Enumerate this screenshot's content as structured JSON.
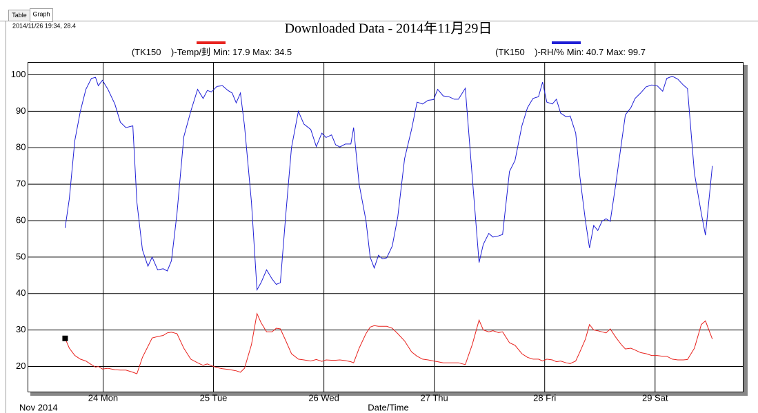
{
  "tabs": [
    "Table",
    "Graph"
  ],
  "cursor_readout": "2014/11/26 19:34, 28.4",
  "chart_data": {
    "type": "line",
    "title": "Downloaded Data - 2014年11月29日",
    "x_label": "Date/Time",
    "x_sublabel": "Nov 2014",
    "grid": true,
    "xlim": [
      23.319,
      29.798
    ],
    "ylim": [
      13,
      103.4
    ],
    "xticks": [
      {
        "value": 24,
        "label": "24 Mon"
      },
      {
        "value": 25,
        "label": "25 Tue"
      },
      {
        "value": 26,
        "label": "26 Wed"
      },
      {
        "value": 27,
        "label": "27 Thu"
      },
      {
        "value": 28,
        "label": "28 Fri"
      },
      {
        "value": 29,
        "label": "29 Sat"
      }
    ],
    "yticks": [
      20,
      30,
      40,
      50,
      60,
      70,
      80,
      90,
      100
    ],
    "x": [
      23.656,
      23.694,
      23.744,
      23.794,
      23.844,
      23.894,
      23.931,
      23.956,
      23.994,
      24.044,
      24.106,
      24.156,
      24.206,
      24.269,
      24.306,
      24.356,
      24.406,
      24.444,
      24.494,
      24.544,
      24.581,
      24.619,
      24.669,
      24.731,
      24.794,
      24.856,
      24.906,
      24.944,
      24.981,
      25.031,
      25.081,
      25.131,
      25.169,
      25.206,
      25.244,
      25.281,
      25.344,
      25.394,
      25.431,
      25.481,
      25.531,
      25.569,
      25.606,
      25.656,
      25.706,
      25.769,
      25.819,
      25.881,
      25.931,
      25.981,
      26.019,
      26.069,
      26.106,
      26.144,
      26.194,
      26.244,
      26.269,
      26.319,
      26.381,
      26.419,
      26.456,
      26.494,
      26.531,
      26.569,
      26.619,
      26.669,
      26.731,
      26.794,
      26.844,
      26.894,
      26.944,
      26.994,
      27.031,
      27.081,
      27.131,
      27.181,
      27.219,
      27.281,
      27.344,
      27.406,
      27.444,
      27.494,
      27.531,
      27.581,
      27.619,
      27.681,
      27.731,
      27.794,
      27.844,
      27.894,
      27.944,
      27.981,
      28.019,
      28.069,
      28.106,
      28.144,
      28.194,
      28.231,
      28.281,
      28.319,
      28.369,
      28.406,
      28.444,
      28.481,
      28.519,
      28.556,
      28.594,
      28.644,
      28.694,
      28.731,
      28.781,
      28.819,
      28.869,
      28.919,
      28.969,
      29.019,
      29.069,
      29.106,
      29.156,
      29.206,
      29.256,
      29.294,
      29.356,
      29.419,
      29.456,
      29.519
    ],
    "series": [
      {
        "name": "(TK150    )-Temp/刲",
        "stats": "Min: 17.9 Max: 34.5",
        "color": "#e8231e",
        "values": [
          27.7,
          25,
          23,
          22,
          21.5,
          20.5,
          19.8,
          20,
          19.3,
          19.5,
          19.1,
          19,
          19,
          18.4,
          18,
          22.5,
          25.5,
          27.8,
          28.2,
          28.5,
          29.2,
          29.4,
          29,
          25,
          22,
          21,
          20.3,
          20.7,
          20.2,
          19.7,
          19.4,
          19.2,
          19,
          18.8,
          18.4,
          19.5,
          26,
          34.5,
          32,
          29.5,
          29.5,
          30.5,
          30.3,
          27,
          23.5,
          22,
          21.8,
          21.5,
          21.9,
          21.4,
          21.8,
          21.7,
          21.7,
          21.8,
          21.6,
          21.3,
          21,
          25,
          29,
          30.8,
          31.2,
          31,
          31,
          31,
          30.5,
          29,
          27,
          24,
          22.8,
          22,
          21.8,
          21.5,
          21.3,
          21,
          21,
          21,
          21,
          20.5,
          26,
          32.7,
          30,
          29.5,
          29.8,
          29.3,
          29.5,
          26.5,
          25.8,
          23.5,
          22.5,
          22,
          22,
          21.5,
          22,
          21.8,
          21.3,
          21.5,
          21,
          20.8,
          21.5,
          24,
          27.5,
          31.5,
          30,
          29.8,
          29.5,
          29.2,
          30.3,
          28,
          26,
          24.8,
          25,
          24.5,
          23.8,
          23.5,
          23,
          23,
          22.8,
          22.8,
          22,
          21.8,
          21.8,
          21.9,
          25,
          31.5,
          32.5,
          27.5
        ]
      },
      {
        "name": "(TK150    )-RH/%",
        "stats": "Min: 40.7 Max: 99.7",
        "color": "#1f1fd6",
        "values": [
          58,
          66,
          82,
          90,
          96,
          99,
          99.3,
          97,
          98.5,
          96,
          92,
          87,
          85.5,
          86,
          65,
          52,
          47.5,
          50,
          46.5,
          46.8,
          46.2,
          49,
          62,
          83,
          90,
          96,
          93.5,
          95.7,
          95.3,
          96.8,
          97,
          95.7,
          95,
          92.3,
          95,
          86,
          65,
          41,
          43,
          46.5,
          44,
          42.5,
          43,
          62,
          80,
          90,
          86.5,
          85,
          80.3,
          84,
          82.8,
          83.5,
          80.8,
          80.2,
          81,
          81,
          85.5,
          70,
          60,
          50,
          47,
          50.5,
          49.5,
          49.8,
          53,
          61,
          77,
          85,
          92.5,
          92,
          93,
          93.2,
          96,
          94.2,
          94,
          93.3,
          93.3,
          96.3,
          72,
          48.5,
          53.5,
          56.5,
          55.5,
          55.8,
          56.2,
          73.5,
          76.5,
          86,
          91,
          93.5,
          94,
          98,
          92.5,
          92,
          93.3,
          89.5,
          88.5,
          88.7,
          84,
          72,
          60,
          52.5,
          58.7,
          57.3,
          59.8,
          60.5,
          59.8,
          70,
          81,
          89,
          91,
          93.5,
          95,
          96.7,
          97.2,
          97,
          95.5,
          99,
          99.6,
          98.8,
          97.2,
          96.2,
          73,
          62,
          56,
          75
        ]
      }
    ]
  }
}
